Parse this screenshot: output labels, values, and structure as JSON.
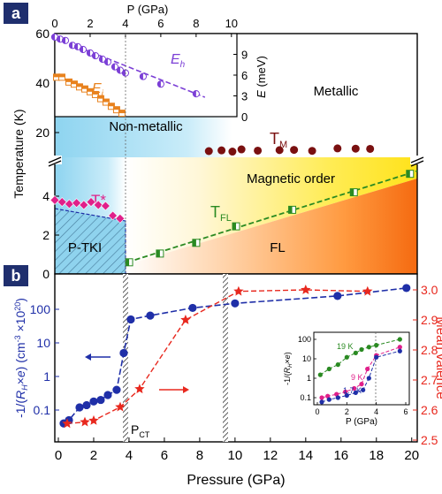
{
  "panels": {
    "a": {
      "label": "a",
      "ylabel": "Temperature (K)",
      "y_ticks_upper": [
        "20",
        "40",
        "60"
      ],
      "y_ticks_lower": [
        "0",
        "2",
        "4"
      ],
      "region_labels": {
        "metallic": "Metallic",
        "non_metallic": "Non-metallic",
        "magnetic_order": "Magnetic order",
        "p_tki": "P-TKI",
        "fl": "FL"
      },
      "curve_labels": {
        "tm": "T",
        "tm_sub": "M",
        "tstar": "T*",
        "tfl": "T",
        "tfl_sub": "FL"
      },
      "inset": {
        "xlabel": "P (GPa)",
        "x_ticks": [
          "0",
          "2",
          "4",
          "6",
          "8",
          "10"
        ],
        "ylabel": "E",
        "ylabel_unit": "(meV)",
        "y_ticks": [
          "0",
          "3",
          "6",
          "9"
        ],
        "eh_label": "E",
        "eh_sub": "h",
        "ei_label": "E",
        "ei_sub": "i"
      }
    },
    "b": {
      "label": "b",
      "xlabel": "Pressure (GPa)",
      "x_ticks": [
        "0",
        "2",
        "4",
        "6",
        "8",
        "10",
        "12",
        "14",
        "16",
        "18",
        "20"
      ],
      "y_left_ticks": [
        "0.1",
        "1",
        "10",
        "100"
      ],
      "y_right_label": "Mean valence",
      "y_right_ticks": [
        "2.5",
        "2.6",
        "2.7",
        "2.8",
        "2.9",
        "3.0"
      ],
      "pct_label": "P",
      "pct_sub": "CT",
      "inset": {
        "xlabel": "P (GPa)",
        "x_ticks": [
          "0",
          "2",
          "4",
          "6"
        ],
        "y_ticks": [
          "0.1",
          "1",
          "10",
          "100"
        ],
        "labels": [
          "19 K",
          "9 K",
          "1.7 K"
        ]
      }
    }
  },
  "colors": {
    "eh": "#7b3fd6",
    "ei": "#e8821e",
    "tm": "#7a1010",
    "tstar": "#e0208a",
    "tfl": "#2a8a22",
    "rh": "#1f2fa8",
    "valence": "#e8281e",
    "green19": "#2a8a22",
    "magenta9": "#e0208a",
    "blue17": "#1f2fa8"
  },
  "chart_data": [
    {
      "type": "scatter",
      "panel": "a",
      "x_range": [
        0,
        20
      ],
      "y_range_lower": [
        0,
        6
      ],
      "y_range_upper": [
        10,
        60
      ],
      "series": [
        {
          "key": "tm",
          "x": [
            8.5,
            9.2,
            9.8,
            10.3,
            11.2,
            12.4,
            13.2,
            14.2,
            15.6,
            16.6,
            17.4
          ],
          "y": [
            12.5,
            12.8,
            12.3,
            13.2,
            12.7,
            12.9,
            13.0,
            12.6,
            13.6,
            13.5,
            13.4
          ]
        },
        {
          "key": "tstar",
          "x": [
            0,
            0.4,
            0.8,
            1.2,
            1.6,
            2.0,
            2.4,
            2.8,
            3.2,
            3.6
          ],
          "y": [
            3.8,
            3.7,
            3.6,
            3.65,
            3.55,
            3.7,
            3.55,
            3.5,
            3.0,
            2.85
          ]
        },
        {
          "key": "tfl",
          "x": [
            4.1,
            5.8,
            7.8,
            10.0,
            13.1,
            16.5,
            19.6
          ],
          "y": [
            0.6,
            1.05,
            1.6,
            2.45,
            3.3,
            4.2,
            5.15
          ]
        }
      ]
    },
    {
      "type": "scatter",
      "panel": "a-inset",
      "x_range": [
        0,
        10
      ],
      "y_range": [
        0,
        12
      ],
      "series": [
        {
          "key": "eh",
          "x": [
            0,
            0.3,
            0.6,
            1.0,
            1.3,
            1.6,
            2.0,
            2.3,
            2.7,
            3.0,
            3.4,
            3.7,
            4.0,
            5.0,
            6.0,
            8.0
          ],
          "y": [
            11.5,
            11.2,
            11.0,
            10.3,
            10.1,
            9.7,
            9.2,
            8.8,
            8.3,
            7.9,
            7.2,
            6.7,
            6.3,
            5.8,
            4.7,
            3.3
          ]
        },
        {
          "key": "ei",
          "x": [
            0.1,
            0.4,
            0.8,
            1.1,
            1.4,
            1.7,
            2.0,
            2.3,
            2.6,
            2.9,
            3.2,
            3.5,
            3.8
          ],
          "y": [
            5.7,
            5.7,
            5.0,
            4.7,
            4.3,
            4.0,
            3.6,
            3.2,
            2.6,
            2.1,
            1.5,
            1.0,
            0.5
          ]
        }
      ]
    },
    {
      "type": "scatter",
      "panel": "b",
      "x_range": [
        0,
        20
      ],
      "series": [
        {
          "key": "rh",
          "x": [
            0.3,
            0.6,
            1.2,
            1.6,
            2.0,
            2.4,
            2.8,
            3.3,
            3.7,
            4.1,
            5.2,
            7.6,
            10.0,
            15.8,
            19.7
          ],
          "y": [
            0.04,
            0.05,
            0.12,
            0.14,
            0.18,
            0.2,
            0.28,
            0.4,
            5.0,
            50,
            65,
            110,
            150,
            250,
            430
          ]
        },
        {
          "key": "valence",
          "x": [
            0.5,
            1.5,
            2.0,
            3.5,
            4.6,
            7.2,
            10.2,
            14.0,
            17.5
          ],
          "y": [
            2.555,
            2.56,
            2.565,
            2.61,
            2.67,
            2.9,
            2.995,
            3.0,
            2.995
          ]
        }
      ]
    },
    {
      "type": "scatter",
      "panel": "b-inset",
      "x_range": [
        0,
        6
      ],
      "series": [
        {
          "key": "19K",
          "x": [
            0.2,
            0.8,
            1.4,
            2.0,
            2.6,
            3.0,
            3.5,
            4.0,
            5.6
          ],
          "y": [
            1.5,
            3,
            5,
            12,
            20,
            30,
            40,
            50,
            100
          ]
        },
        {
          "key": "9K",
          "x": [
            0.3,
            0.7,
            1.3,
            1.9,
            2.5,
            3.0,
            3.4,
            4.0,
            5.6
          ],
          "y": [
            0.1,
            0.12,
            0.15,
            0.2,
            0.3,
            0.5,
            3,
            15,
            40
          ]
        },
        {
          "key": "1.7K",
          "x": [
            0.3,
            0.8,
            1.4,
            2.0,
            2.6,
            3.1,
            3.5,
            4.0,
            5.6
          ],
          "y": [
            0.06,
            0.08,
            0.1,
            0.13,
            0.18,
            0.25,
            1,
            12,
            25
          ]
        }
      ]
    }
  ]
}
